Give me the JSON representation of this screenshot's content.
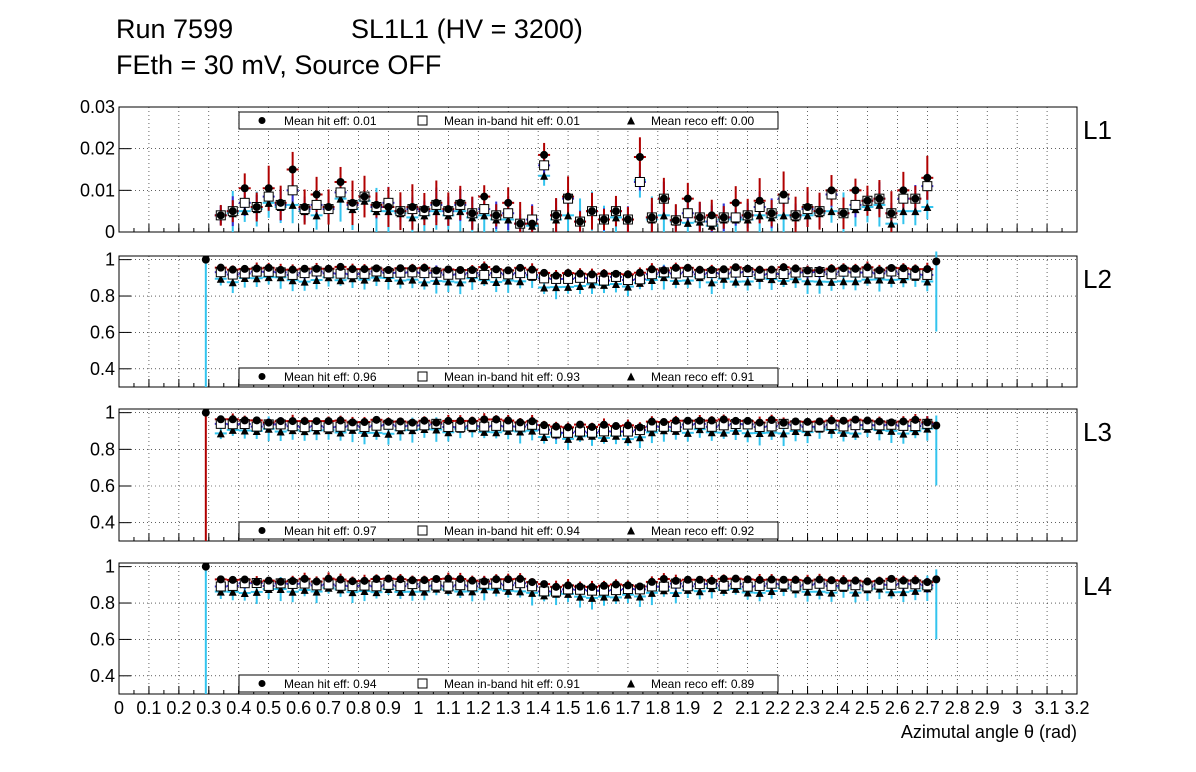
{
  "header": {
    "run": "Run 7599",
    "chamber": "SL1L1 (HV = 3200)",
    "conditions": "FEth = 30 mV, Source OFF"
  },
  "colors": {
    "hit": "#b00000",
    "inband": "#3a2ad0",
    "reco": "#33c4ee",
    "marker": "#000000"
  },
  "chart_data": {
    "type": "scatter",
    "xlabel": "Azimutal angle θ (rad)",
    "xlim": [
      0,
      3.2
    ],
    "x_ticks": [
      "0",
      "0.1",
      "0.2",
      "0.3",
      "0.4",
      "0.5",
      "0.6",
      "0.7",
      "0.8",
      "0.9",
      "1",
      "1.1",
      "1.2",
      "1.3",
      "1.4",
      "1.5",
      "1.6",
      "1.7",
      "1.8",
      "1.9",
      "2",
      "2.1",
      "2.2",
      "2.3",
      "2.4",
      "2.5",
      "2.6",
      "2.7",
      "2.8",
      "2.9",
      "3",
      "3.1",
      "3.2"
    ],
    "panels": [
      {
        "name": "L1",
        "ylim": [
          0,
          0.03
        ],
        "y_ticks": [
          "0",
          "0.01",
          "0.02",
          "0.03"
        ],
        "legend": [
          "Mean hit  eff: 0.01",
          "Mean in-band hit eff: 0.01",
          "Mean reco eff: 0.00"
        ],
        "x": [
          0.34,
          0.38,
          0.42,
          0.46,
          0.5,
          0.54,
          0.58,
          0.62,
          0.66,
          0.7,
          0.74,
          0.78,
          0.82,
          0.86,
          0.9,
          0.94,
          0.98,
          1.02,
          1.06,
          1.1,
          1.14,
          1.18,
          1.22,
          1.26,
          1.3,
          1.34,
          1.38,
          1.42,
          1.46,
          1.5,
          1.54,
          1.58,
          1.62,
          1.66,
          1.7,
          1.74,
          1.78,
          1.82,
          1.86,
          1.9,
          1.94,
          1.98,
          2.02,
          2.06,
          2.1,
          2.14,
          2.18,
          2.22,
          2.26,
          2.3,
          2.34,
          2.38,
          2.42,
          2.46,
          2.5,
          2.54,
          2.58,
          2.62,
          2.66,
          2.7
        ],
        "hit": [
          0.004,
          0.005,
          0.0105,
          0.006,
          0.0105,
          0.007,
          0.015,
          0.006,
          0.009,
          0.006,
          0.012,
          0.007,
          0.0085,
          0.0065,
          0.006,
          0.005,
          0.006,
          0.0055,
          0.007,
          0.0055,
          0.007,
          0.0045,
          0.0085,
          0.004,
          0.007,
          0.002,
          0.002,
          0.0185,
          0.004,
          0.0085,
          0.0025,
          0.005,
          0.003,
          0.005,
          0.003,
          0.018,
          0.0035,
          0.008,
          0.0028,
          0.008,
          0.0035,
          0.004,
          0.0035,
          0.007,
          0.004,
          0.0075,
          0.0045,
          0.009,
          0.004,
          0.006,
          0.005,
          0.01,
          0.0045,
          0.01,
          0.0075,
          0.008,
          0.0045,
          0.01,
          0.008,
          0.013
        ],
        "inband": [
          0.004,
          0.005,
          0.007,
          0.006,
          0.0085,
          0.0065,
          0.01,
          0.0055,
          0.0065,
          0.0055,
          0.0095,
          0.0065,
          0.0085,
          0.006,
          0.007,
          0.005,
          0.0055,
          0.005,
          0.0065,
          0.005,
          0.0065,
          0.0045,
          0.0055,
          0.004,
          0.0045,
          0.002,
          0.003,
          0.016,
          0.004,
          0.008,
          0.0025,
          0.005,
          0.003,
          0.005,
          0.003,
          0.012,
          0.0035,
          0.008,
          0.0028,
          0.0045,
          0.0035,
          0.0025,
          0.0035,
          0.0035,
          0.004,
          0.006,
          0.0045,
          0.008,
          0.004,
          0.0055,
          0.005,
          0.009,
          0.0045,
          0.0065,
          0.0075,
          0.008,
          0.0045,
          0.008,
          0.008,
          0.011
        ],
        "reco": [
          0.004,
          0.0045,
          0.005,
          0.0055,
          0.007,
          0.006,
          0.0065,
          0.005,
          0.004,
          0.006,
          0.008,
          0.0055,
          0.0075,
          0.005,
          0.005,
          0.0045,
          0.0035,
          0.004,
          0.005,
          0.004,
          0.005,
          0.0035,
          0.004,
          0.003,
          0.003,
          0.002,
          0.0015,
          0.0135,
          0.003,
          0.004,
          0.0025,
          0.005,
          0.003,
          0.0035,
          0.003,
          0.0125,
          0.003,
          0.004,
          0.0025,
          0.0022,
          0.0025,
          0.0015,
          0.003,
          0.003,
          0.003,
          0.004,
          0.0035,
          0.004,
          0.0035,
          0.004,
          0.0045,
          0.005,
          0.0045,
          0.0055,
          0.006,
          0.0065,
          0.002,
          0.005,
          0.005,
          0.006
        ]
      },
      {
        "name": "L2",
        "ylim": [
          0.3,
          1.02
        ],
        "y_ticks": [
          "0.4",
          "0.6",
          "0.8",
          "1"
        ],
        "legend": [
          "Mean hit  eff: 0.96",
          "Mean in-band hit eff: 0.93",
          "Mean reco eff: 0.91"
        ],
        "first_x": 0.29,
        "first": 1.0,
        "last_x": 2.73,
        "last": 0.99,
        "base_hit": 0.96,
        "base_inband": 0.935,
        "base_reco": 0.905
      },
      {
        "name": "L3",
        "ylim": [
          0.3,
          1.02
        ],
        "y_ticks": [
          "0.4",
          "0.6",
          "0.8",
          "1"
        ],
        "legend": [
          "Mean hit  eff: 0.97",
          "Mean in-band hit eff: 0.94",
          "Mean reco eff: 0.92"
        ],
        "first_x": 0.29,
        "first": 1.0,
        "last_x": 2.73,
        "last": 0.93,
        "base_hit": 0.965,
        "base_inband": 0.94,
        "base_reco": 0.915
      },
      {
        "name": "L4",
        "ylim": [
          0.3,
          1.02
        ],
        "y_ticks": [
          "0.4",
          "0.6",
          "0.8",
          "1"
        ],
        "legend": [
          "Mean hit  eff: 0.94",
          "Mean in-band hit eff: 0.91",
          "Mean reco eff: 0.89"
        ],
        "first_x": 0.29,
        "first": 1.0,
        "last_x": 2.73,
        "last": 0.93,
        "base_hit": 0.935,
        "base_inband": 0.91,
        "base_reco": 0.885
      }
    ]
  }
}
